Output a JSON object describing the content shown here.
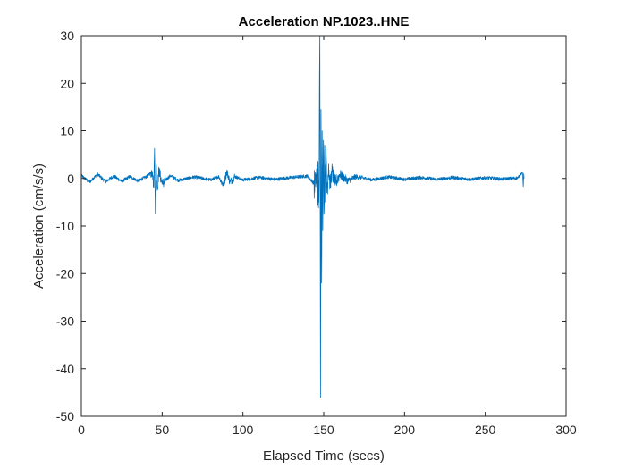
{
  "chart_data": {
    "type": "line",
    "title": "Acceleration NP.1023..HNE",
    "xlabel": "Elapsed Time (secs)",
    "ylabel": "Acceleration (cm/s/s)",
    "xlim": [
      0,
      300
    ],
    "ylim": [
      -50,
      30
    ],
    "x_ticks": [
      0,
      50,
      100,
      150,
      200,
      250,
      300
    ],
    "y_ticks": [
      -50,
      -40,
      -30,
      -20,
      -10,
      0,
      10,
      20,
      30
    ],
    "grid": false,
    "legend": "none",
    "series": [
      {
        "color": "#0072BD",
        "x": [
          0,
          5,
          10,
          15,
          20,
          25,
          30,
          35,
          40,
          44,
          44.8,
          45.3,
          45.8,
          46.3,
          47,
          48,
          50,
          55,
          60,
          70,
          80,
          85,
          88,
          90,
          92,
          95,
          100,
          110,
          120,
          130,
          140,
          145,
          146,
          147,
          147.6,
          148,
          148.3,
          148.7,
          149,
          149.4,
          149.8,
          150.2,
          150.6,
          151,
          151.5,
          152,
          153,
          154,
          155,
          157,
          160,
          165,
          170,
          180,
          190,
          200,
          210,
          220,
          230,
          240,
          250,
          260,
          270,
          273,
          273.5,
          273.8,
          274
        ],
        "y": [
          0.6,
          -0.8,
          0.9,
          -0.7,
          0.5,
          -0.6,
          0.4,
          -0.5,
          0.3,
          1.5,
          -2,
          6.3,
          -7.5,
          3,
          -2.5,
          1.8,
          -1.2,
          0.6,
          -0.4,
          0.3,
          -0.3,
          0.4,
          -1.5,
          1.5,
          -0.8,
          0.4,
          -0.3,
          0.2,
          -0.2,
          0.2,
          0.5,
          -1.5,
          2,
          -5,
          30,
          -46,
          14.5,
          -22,
          10,
          -11,
          8,
          -7,
          7,
          -5,
          5,
          -3,
          3,
          -2,
          1.5,
          -1,
          0.8,
          -0.5,
          0.4,
          -0.3,
          0.3,
          -0.2,
          0.2,
          -0.2,
          0.2,
          -0.2,
          0.15,
          -0.15,
          0.1,
          1.3,
          -1.7,
          1,
          0
        ]
      }
    ]
  }
}
